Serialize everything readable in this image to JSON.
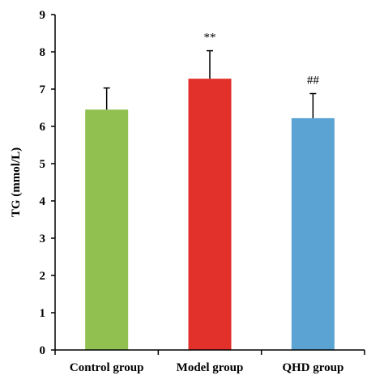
{
  "chart_data": {
    "type": "bar",
    "title": "",
    "xlabel": "",
    "ylabel": "TG (mmol/L)",
    "ylim": [
      0,
      9
    ],
    "yticks": [
      0,
      1,
      2,
      3,
      4,
      5,
      6,
      7,
      8,
      9
    ],
    "ytick_labels": [
      "0",
      "1",
      "2",
      "3",
      "4",
      "5",
      "6",
      "7",
      "8",
      "9"
    ],
    "grid": false,
    "legend": "none",
    "categories": [
      "Control group",
      "Model group",
      "QHD group"
    ],
    "values": [
      6.45,
      7.28,
      6.22
    ],
    "errors": [
      0.58,
      0.75,
      0.66
    ],
    "annotations": [
      "",
      "**",
      "##"
    ],
    "colors": [
      "#92c050",
      "#e2312b",
      "#5ba3d3"
    ]
  }
}
